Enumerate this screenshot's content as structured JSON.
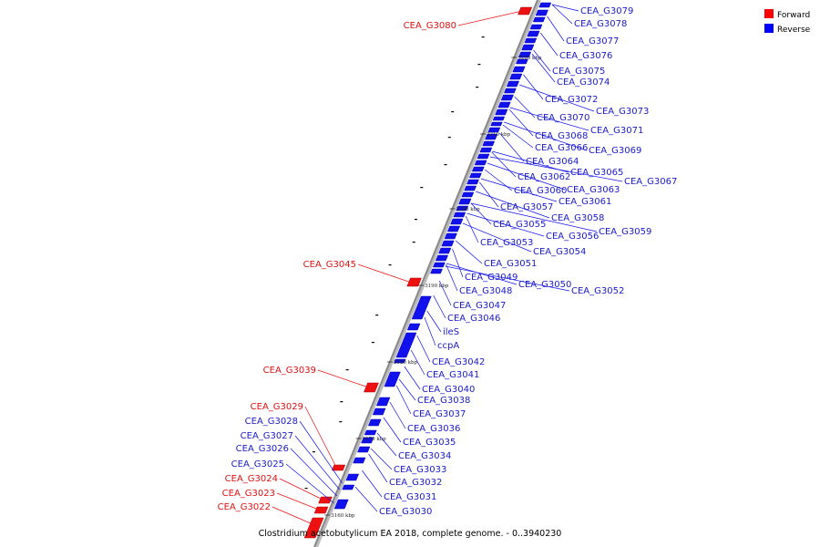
{
  "caption": "Clostridium acetobutylicum EA 2018, complete genome. - 0..3940230",
  "legend": [
    {
      "label": "Forward",
      "color": "#ff0000"
    },
    {
      "label": "Reverse",
      "color": "#0000ff"
    }
  ],
  "colors": {
    "forward": "#ee1111",
    "reverse": "#1111ee",
    "backbone": "#999999"
  },
  "ticks": [
    "3220 kbp",
    "3210 kbp",
    "3200 kbp",
    "3190 kbp",
    "3180 kbp",
    "3170 kbp",
    "3160 kbp"
  ],
  "forward_labels": [
    "CEA_G3080",
    "CEA_G3045",
    "CEA_G3039",
    "CEA_G3029",
    "CEA_G3024",
    "CEA_G3023",
    "CEA_G3022"
  ],
  "reverse_left_labels": [
    "CEA_G3028",
    "CEA_G3027",
    "CEA_G3026",
    "CEA_G3025"
  ],
  "reverse_labels": [
    "CEA_G3079",
    "CEA_G3078",
    "CEA_G3077",
    "CEA_G3076",
    "CEA_G3075",
    "CEA_G3074",
    "CEA_G3073",
    "CEA_G3072",
    "CEA_G3071",
    "CEA_G3070",
    "CEA_G3069",
    "CEA_G3068",
    "CEA_G3067",
    "CEA_G3066",
    "CEA_G3065",
    "CEA_G3064",
    "CEA_G3063",
    "CEA_G3062",
    "CEA_G3061",
    "CEA_G3060",
    "CEA_G3059",
    "CEA_G3058",
    "CEA_G3057",
    "CEA_G3056",
    "CEA_G3055",
    "CEA_G3054",
    "CEA_G3053",
    "CEA_G3052",
    "CEA_G3051",
    "CEA_G3050",
    "CEA_G3049",
    "CEA_G3048",
    "CEA_G3047",
    "CEA_G3046",
    "ileS",
    "ccpA",
    "CEA_G3042",
    "CEA_G3041",
    "CEA_G3040",
    "CEA_G3038",
    "CEA_G3037",
    "CEA_G3036",
    "CEA_G3035",
    "CEA_G3034",
    "CEA_G3033",
    "CEA_G3032",
    "CEA_G3031",
    "CEA_G3030"
  ]
}
